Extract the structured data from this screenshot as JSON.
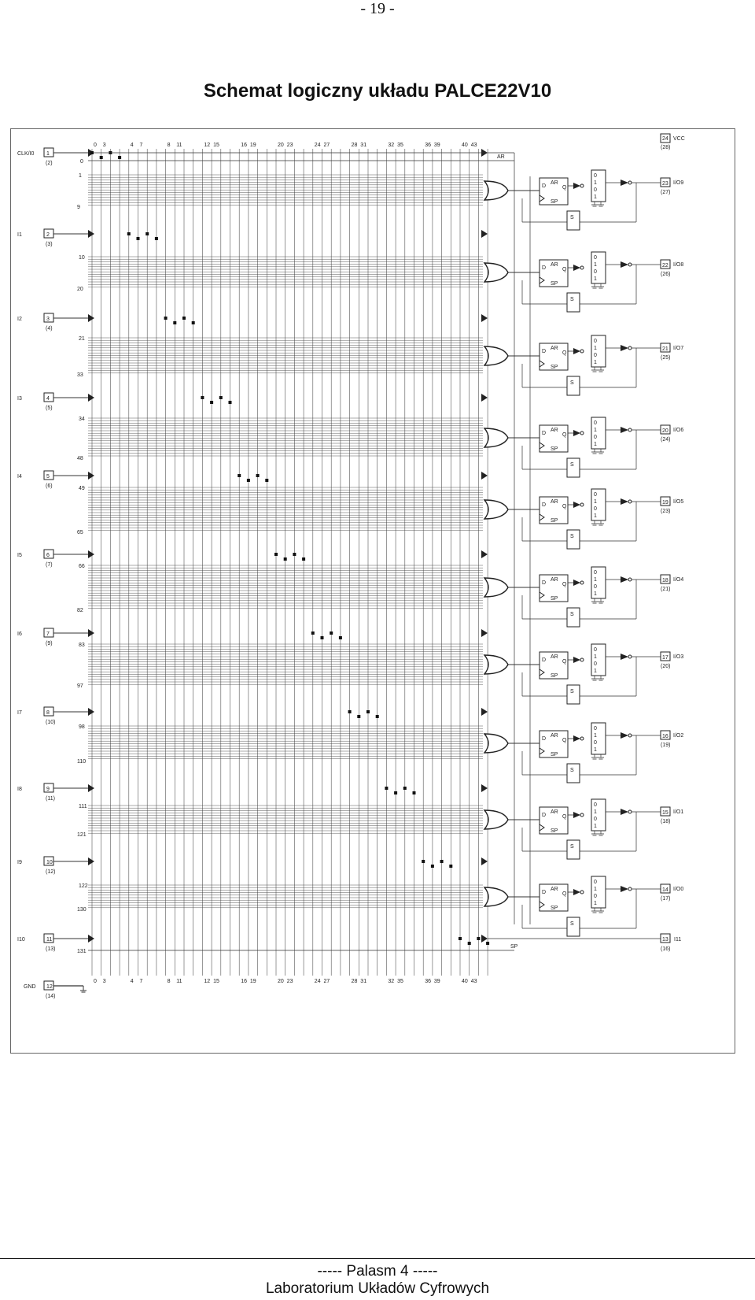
{
  "page_number": "- 19 -",
  "title": "Schemat logiczny układu PALCE22V10",
  "footer": {
    "line1": "-----  Palasm 4  -----",
    "line2": "Laboratorium Układów Cyfrowych"
  },
  "diagram": {
    "vcc_pin": {
      "num": "24",
      "alt": "(28)",
      "label": "VCC"
    },
    "gnd_pin": {
      "num": "12",
      "alt": "(14)",
      "label": "GND"
    },
    "ar_label": "AR",
    "sp_label": "SP",
    "column_labels": [
      "0",
      "3",
      "4",
      "7",
      "8",
      "11",
      "12",
      "15",
      "16",
      "19",
      "20",
      "23",
      "24",
      "27",
      "28",
      "31",
      "32",
      "35",
      "36",
      "39",
      "40",
      "43"
    ],
    "inputs": [
      {
        "name": "CLK/I0",
        "num": "1",
        "alt": "(2)"
      },
      {
        "name": "I1",
        "num": "2",
        "alt": "(3)"
      },
      {
        "name": "I2",
        "num": "3",
        "alt": "(4)"
      },
      {
        "name": "I3",
        "num": "4",
        "alt": "(5)"
      },
      {
        "name": "I4",
        "num": "5",
        "alt": "(6)"
      },
      {
        "name": "I5",
        "num": "6",
        "alt": "(7)"
      },
      {
        "name": "I6",
        "num": "7",
        "alt": "(9)"
      },
      {
        "name": "I7",
        "num": "8",
        "alt": "(10)"
      },
      {
        "name": "I8",
        "num": "9",
        "alt": "(11)"
      },
      {
        "name": "I9",
        "num": "10",
        "alt": "(12)"
      },
      {
        "name": "I10",
        "num": "11",
        "alt": "(13)"
      }
    ],
    "outputs": [
      {
        "name": "I/O9",
        "num": "23",
        "alt": "(27)"
      },
      {
        "name": "I/O8",
        "num": "22",
        "alt": "(26)"
      },
      {
        "name": "I/O7",
        "num": "21",
        "alt": "(25)"
      },
      {
        "name": "I/O6",
        "num": "20",
        "alt": "(24)"
      },
      {
        "name": "I/O5",
        "num": "19",
        "alt": "(23)"
      },
      {
        "name": "I/O4",
        "num": "18",
        "alt": "(21)"
      },
      {
        "name": "I/O3",
        "num": "17",
        "alt": "(20)"
      },
      {
        "name": "I/O2",
        "num": "16",
        "alt": "(19)"
      },
      {
        "name": "I/O1",
        "num": "15",
        "alt": "(18)"
      },
      {
        "name": "I/O0",
        "num": "14",
        "alt": "(17)"
      }
    ],
    "extra_input": {
      "name": "I11",
      "num": "13",
      "alt": "(16)"
    },
    "row_labels": [
      [
        "1",
        "9"
      ],
      [
        "10",
        "20"
      ],
      [
        "21",
        "33"
      ],
      [
        "34",
        "48"
      ],
      [
        "49",
        "65"
      ],
      [
        "66",
        "82"
      ],
      [
        "83",
        "97"
      ],
      [
        "98",
        "110"
      ],
      [
        "111",
        "121"
      ],
      [
        "122",
        "130"
      ]
    ],
    "ar_row": "0",
    "sp_row": "131",
    "sel_label": "S",
    "ff_labels": {
      "ar": "AR",
      "sp": "SP",
      "d": "D",
      "q": "Q"
    }
  }
}
